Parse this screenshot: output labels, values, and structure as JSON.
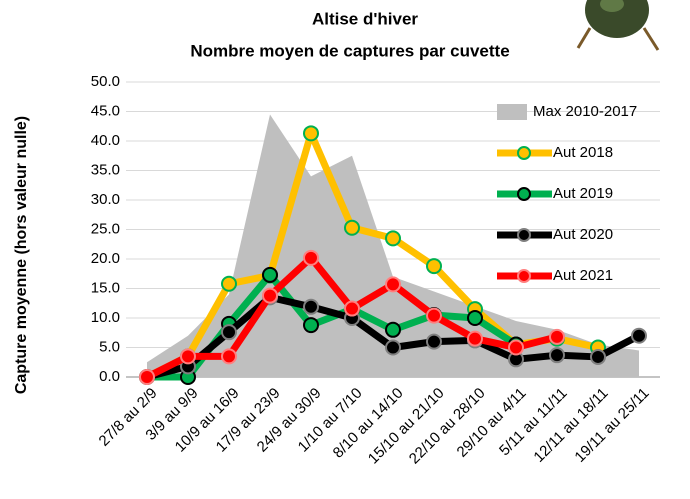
{
  "chart_data": {
    "type": "line",
    "title": "Altise d'hiver",
    "subtitle": "Nombre moyen de captures par cuvette",
    "y_label": "Capture moyenne (hors valeur nulle)",
    "categories": [
      "27/8 au 2/9",
      "3/9 au 9/9",
      "10/9 au 16/9",
      "17/9 au 23/9",
      "24/9 au 30/9",
      "1/10 au 7/10",
      "8/10 au 14/10",
      "15/10 au 21/10",
      "22/10 au 28/10",
      "29/10 au 4/11",
      "5/11 au 11/11",
      "12/11 au 18/11",
      "19/11 au 25/11"
    ],
    "series": [
      {
        "name": "Max 2010-2017",
        "type": "area",
        "color": "#bfbfbf",
        "values": [
          2.5,
          7,
          14,
          44.5,
          34,
          37.5,
          17,
          14.5,
          12,
          9.5,
          8,
          5.5,
          4.5
        ]
      },
      {
        "name": "Aut 2018",
        "color": "#ffc000",
        "marker_edge": "#00b050",
        "values": [
          0,
          3.5,
          15.8,
          17.2,
          41.3,
          25.3,
          23.5,
          18.8,
          11.5,
          5.5,
          6.5,
          5.0,
          null
        ]
      },
      {
        "name": "Aut 2019",
        "color": "#00b050",
        "marker_edge": "#000000",
        "values": [
          0,
          0,
          9.0,
          17.3,
          8.8,
          11.5,
          8.0,
          10.5,
          10.0,
          5.5,
          null,
          null,
          null
        ]
      },
      {
        "name": "Aut 2020",
        "color": "#000000",
        "marker_edge": "#7f7f7f",
        "values": [
          0,
          1.8,
          7.6,
          13.5,
          11.9,
          10.0,
          5.0,
          6.0,
          6.2,
          3.0,
          3.7,
          3.4,
          7.0
        ]
      },
      {
        "name": "Aut 2021",
        "color": "#ff0000",
        "marker_edge": "#ff7f7f",
        "values": [
          0,
          3.5,
          3.5,
          13.8,
          20.2,
          11.6,
          15.7,
          10.4,
          6.5,
          5.0,
          6.8,
          null,
          null
        ]
      }
    ],
    "ylim": [
      0,
      50
    ],
    "yticks": [
      {
        "value": 0,
        "label": "0.0"
      },
      {
        "value": 5,
        "label": "5.0"
      },
      {
        "value": 10,
        "label": "10.0"
      },
      {
        "value": 15,
        "label": "15.0"
      },
      {
        "value": 20,
        "label": "20.0"
      },
      {
        "value": 25,
        "label": "25.0"
      },
      {
        "value": 30,
        "label": "30.0"
      },
      {
        "value": 35,
        "label": "35.0"
      },
      {
        "value": 40,
        "label": "40.0"
      },
      {
        "value": 45,
        "label": "45.0"
      },
      {
        "value": 50,
        "label": "50.0"
      }
    ],
    "grid": true
  }
}
